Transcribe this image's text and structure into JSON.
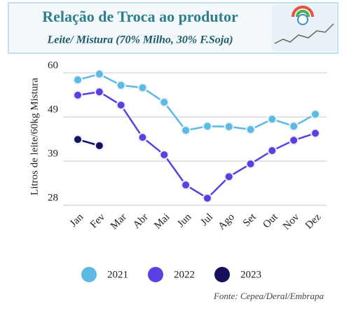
{
  "chart_data": {
    "type": "line",
    "title": "Relação de Troca ao produtor",
    "subtitle": "Leite/ Mistura (70% Milho, 30% F.Soja)",
    "y_label": "Litros de leite/60kg Mistura",
    "source": "Fonte: Cepea/Deral/Embrapa",
    "categories": [
      "Jan",
      "Fev",
      "Mar",
      "Abr",
      "Mai",
      "Jun",
      "Jul",
      "Ago",
      "Set",
      "Out",
      "Nov",
      "Dez"
    ],
    "series": [
      {
        "name": "2021",
        "color": "#5cb9e4",
        "values": [
          58.3,
          59.7,
          57.0,
          56.4,
          52.9,
          46.1,
          47.1,
          47.0,
          46.3,
          48.8,
          47.1,
          50.0
        ]
      },
      {
        "name": "2022",
        "color": "#5b3fe2",
        "values": [
          54.6,
          55.4,
          52.2,
          44.4,
          40.2,
          32.9,
          29.7,
          34.9,
          38.0,
          41.2,
          43.7,
          45.4
        ]
      },
      {
        "name": "2023",
        "color": "#15105c",
        "values": [
          43.9,
          42.4,
          null,
          null,
          null,
          null,
          null,
          null,
          null,
          null,
          null,
          null
        ]
      }
    ],
    "ylim": [
      28,
      60
    ],
    "yticks": [
      60,
      {
        "value": 49.33,
        "label": "49"
      },
      {
        "value": 38.67,
        "label": "39"
      },
      28
    ],
    "grid": true,
    "legend": "bottom"
  }
}
